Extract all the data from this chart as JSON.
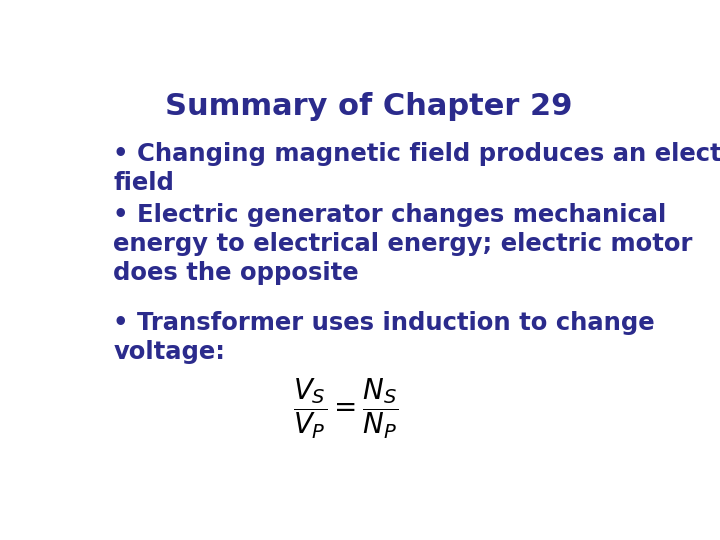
{
  "title": "Summary of Chapter 29",
  "title_color": "#2B2B8C",
  "title_fontsize": 22,
  "background_color": "#FFFFFF",
  "text_color": "#2B2B8C",
  "formula_color": "#000000",
  "text_fontsize": 17.5,
  "formula_fontsize": 20,
  "bullet1": "• Changing magnetic field produces an electric\nfield",
  "bullet2": "• Electric generator changes mechanical\nenergy to electrical energy; electric motor\ndoes the opposite",
  "bullet3": "• Transformer uses induction to change\nvoltage:"
}
